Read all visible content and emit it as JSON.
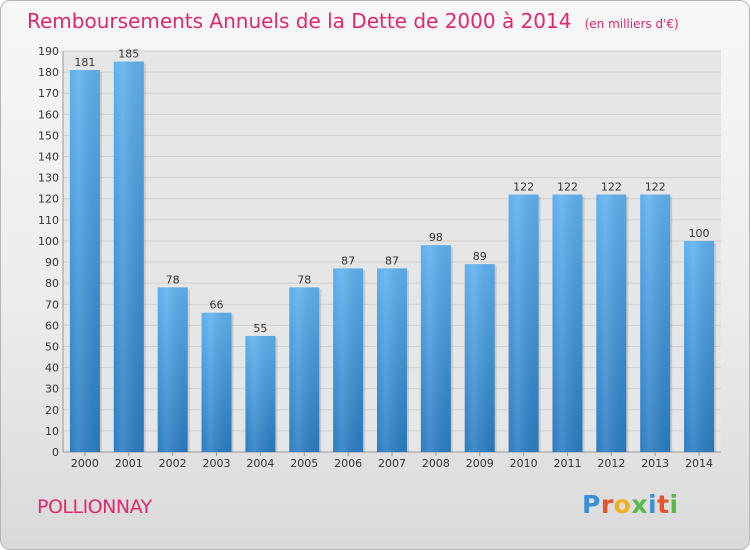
{
  "chart_data": {
    "type": "bar",
    "title": "Remboursements Annuels de la Dette de 2000 à 2014",
    "subtitle": "(en milliers d'€)",
    "categories": [
      "2000",
      "2001",
      "2002",
      "2003",
      "2004",
      "2005",
      "2006",
      "2007",
      "2008",
      "2009",
      "2010",
      "2011",
      "2012",
      "2013",
      "2014"
    ],
    "values": [
      181,
      185,
      78,
      66,
      55,
      78,
      87,
      87,
      98,
      89,
      122,
      122,
      122,
      122,
      100
    ],
    "ylim": [
      0,
      190
    ],
    "yticks": [
      0,
      10,
      20,
      30,
      40,
      50,
      60,
      70,
      80,
      90,
      100,
      110,
      120,
      130,
      140,
      150,
      160,
      170,
      180,
      190
    ],
    "grid": true,
    "bar_color": "#3b94d9"
  },
  "place": "POLLIONNAY",
  "logo": {
    "letters": [
      "P",
      "r",
      "o",
      "x",
      "i",
      "t",
      "i"
    ],
    "colors": [
      "#3a8fd8",
      "#e8522a",
      "#f0b01c",
      "#59b947",
      "#3a8fd8",
      "#e8522a",
      "#59b947"
    ]
  }
}
